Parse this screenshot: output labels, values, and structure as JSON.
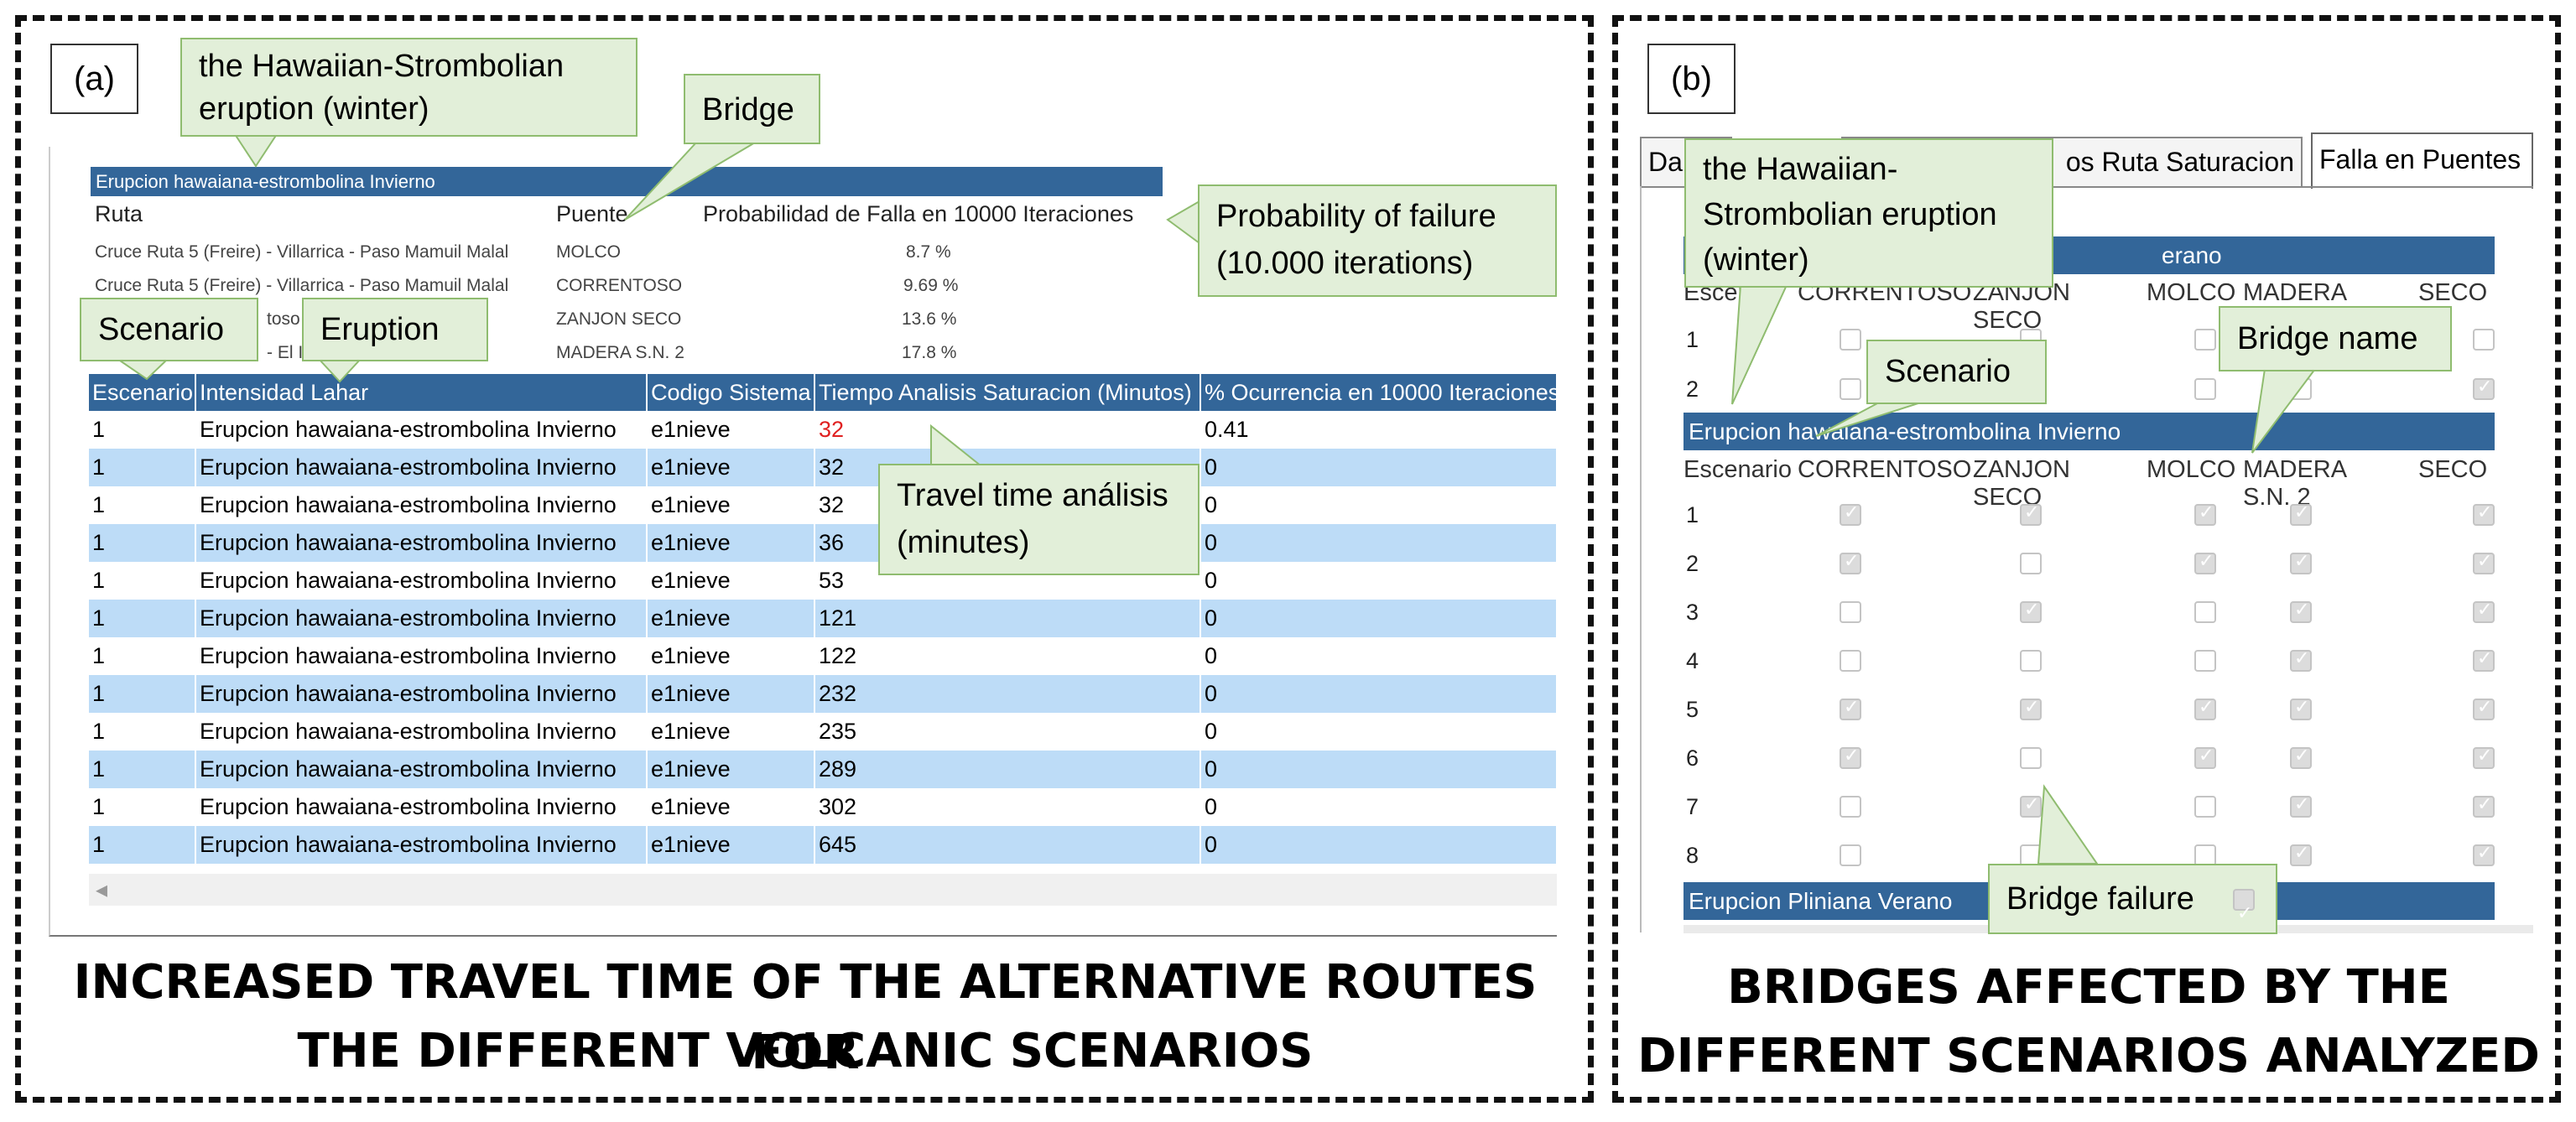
{
  "panel_a": {
    "label": "(a)",
    "caption_line1": "INCREASED TRAVEL TIME OF THE ALTERNATIVE ROUTES FOR",
    "caption_line2": "THE DIFFERENT VOLCANIC SCENARIOS",
    "top_band": "Erupcion hawaiana-estrombolina Invierno",
    "prob_header": {
      "ruta": "Ruta",
      "puente": "Puente",
      "prob": "Probabilidad de Falla en 10000 Iteraciones"
    },
    "prob_rows": [
      {
        "ruta": "Cruce Ruta 5 (Freire) - Villarrica - Paso Mamuil Malal",
        "puente": "MOLCO",
        "prob": "8.7 %"
      },
      {
        "ruta": "Cruce Ruta 5 (Freire) - Villarrica - Paso Mamuil Malal",
        "puente": "CORRENTOSO",
        "prob": "9.69 %"
      },
      {
        "ruta": "toso",
        "puente": "ZANJON SECO",
        "prob": "13.6 %"
      },
      {
        "ruta": "- El I",
        "puente": "MADERA S.N. 2",
        "prob": "17.8 %"
      }
    ],
    "columns": [
      "Escenario",
      "Intensidad Lahar",
      "Codigo Sistema",
      "Tiempo Analisis Saturacion (Minutos)",
      "% Ocurrencia en 10000 Iteraciones"
    ],
    "rows": [
      [
        "1",
        "Erupcion hawaiana-estrombolina Invierno",
        "e1nieve",
        "32",
        "0.41"
      ],
      [
        "1",
        "Erupcion hawaiana-estrombolina Invierno",
        "e1nieve",
        "32",
        "0"
      ],
      [
        "1",
        "Erupcion hawaiana-estrombolina Invierno",
        "e1nieve",
        "32",
        "0"
      ],
      [
        "1",
        "Erupcion hawaiana-estrombolina Invierno",
        "e1nieve",
        "36",
        "0"
      ],
      [
        "1",
        "Erupcion hawaiana-estrombolina Invierno",
        "e1nieve",
        "53",
        "0"
      ],
      [
        "1",
        "Erupcion hawaiana-estrombolina Invierno",
        "e1nieve",
        "121",
        "0"
      ],
      [
        "1",
        "Erupcion hawaiana-estrombolina Invierno",
        "e1nieve",
        "122",
        "0"
      ],
      [
        "1",
        "Erupcion hawaiana-estrombolina Invierno",
        "e1nieve",
        "232",
        "0"
      ],
      [
        "1",
        "Erupcion hawaiana-estrombolina Invierno",
        "e1nieve",
        "235",
        "0"
      ],
      [
        "1",
        "Erupcion hawaiana-estrombolina Invierno",
        "e1nieve",
        "289",
        "0"
      ],
      [
        "1",
        "Erupcion hawaiana-estrombolina Invierno",
        "e1nieve",
        "302",
        "0"
      ],
      [
        "1",
        "Erupcion hawaiana-estrombolina Invierno",
        "e1nieve",
        "645",
        "0"
      ]
    ],
    "highlight_color": "#e02020",
    "callouts": {
      "hawaiian": "the Hawaiian-Strombolian eruption (winter)",
      "bridge": "Bridge",
      "probability": "Probability of failure (10.000 iterations)",
      "scenario": "Scenario",
      "eruption": "Eruption",
      "travel_time": "Travel time análisis (minutes)"
    },
    "scroll_arrow": "◂"
  },
  "panel_b": {
    "label": "(b)",
    "caption_line1": "BRIDGES AFFECTED BY THE",
    "caption_line2": "DIFFERENT SCENARIOS ANALYZED",
    "tabs": [
      "Da",
      "os Ruta Saturacion",
      "Falla en Puentes"
    ],
    "band1_visible": "erano",
    "header_cols": [
      "Escena",
      "CORRENTOSO",
      "ZANJON SECO",
      "MOLCO",
      "MADERA S.N. 2",
      "SECO"
    ],
    "header_cols_full": [
      "Escenario",
      "CORRENTOSO",
      "ZANJON SECO",
      "MOLCO",
      "MADERA S.N. 2",
      "SECO"
    ],
    "band2": "Erupcion hawaiana-estrombolina Invierno",
    "band3": "Erupcion Pliniana Verano",
    "section1_rows": [
      {
        "n": "1",
        "checks": [
          false,
          false,
          false,
          false,
          false
        ]
      },
      {
        "n": "2",
        "checks": [
          false,
          false,
          false,
          false,
          true
        ]
      }
    ],
    "section2_rows": [
      {
        "n": "1",
        "checks": [
          true,
          true,
          true,
          true,
          true
        ]
      },
      {
        "n": "2",
        "checks": [
          true,
          false,
          true,
          true,
          true
        ]
      },
      {
        "n": "3",
        "checks": [
          false,
          true,
          false,
          true,
          true
        ]
      },
      {
        "n": "4",
        "checks": [
          false,
          false,
          false,
          true,
          true
        ]
      },
      {
        "n": "5",
        "checks": [
          true,
          true,
          true,
          true,
          true
        ]
      },
      {
        "n": "6",
        "checks": [
          true,
          false,
          true,
          true,
          true
        ]
      },
      {
        "n": "7",
        "checks": [
          false,
          true,
          false,
          true,
          true
        ]
      },
      {
        "n": "8",
        "checks": [
          false,
          false,
          false,
          true,
          true
        ]
      }
    ],
    "callouts": {
      "hawaiian": "the Hawaiian-Strombolian eruption (winter)",
      "scenario": "Scenario",
      "bridge_name": "Bridge name",
      "bridge_failure": "Bridge failure"
    }
  }
}
